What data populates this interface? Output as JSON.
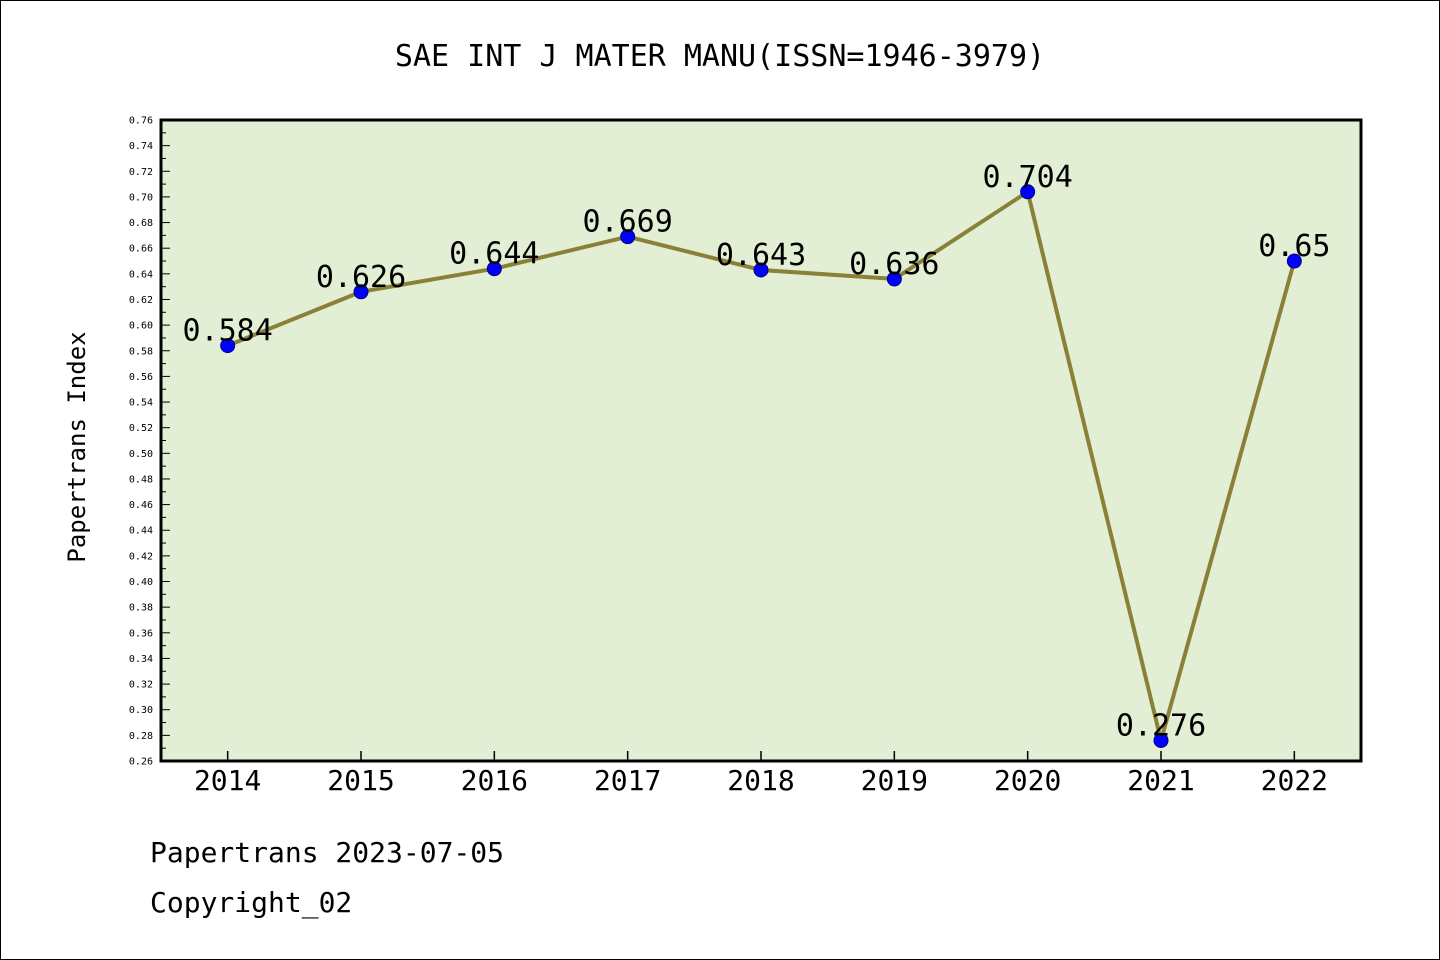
{
  "chart_data": {
    "type": "line",
    "title": "SAE INT J MATER MANU(ISSN=1946-3979)",
    "xlabel": "",
    "ylabel": "Papertrans Index",
    "categories": [
      "2014",
      "2015",
      "2016",
      "2017",
      "2018",
      "2019",
      "2020",
      "2021",
      "2022"
    ],
    "series": [
      {
        "values": [
          0.584,
          0.626,
          0.644,
          0.669,
          0.643,
          0.636,
          0.704,
          0.276,
          0.65
        ],
        "data_labels": [
          "0.584",
          "0.626",
          "0.644",
          "0.669",
          "0.643",
          "0.636",
          "0.704",
          "0.276",
          "0.65"
        ]
      }
    ],
    "ylim": [
      0.26,
      0.76
    ],
    "y_ticks": [
      "0.26",
      "0.28",
      "0.30",
      "0.32",
      "0.34",
      "0.36",
      "0.38",
      "0.40",
      "0.42",
      "0.44",
      "0.46",
      "0.48",
      "0.50",
      "0.52",
      "0.54",
      "0.56",
      "0.58",
      "0.60",
      "0.62",
      "0.64",
      "0.66",
      "0.68",
      "0.70",
      "0.72",
      "0.74",
      "0.76"
    ],
    "grid": false,
    "legend": "none",
    "colors": {
      "plot_background": "#e2efd5",
      "line": "#8b8038",
      "marker": "#0000ff",
      "marker_edge": "#000080"
    }
  },
  "footer": {
    "line1": "Papertrans 2023-07-05",
    "line2": "Copyright_02"
  }
}
